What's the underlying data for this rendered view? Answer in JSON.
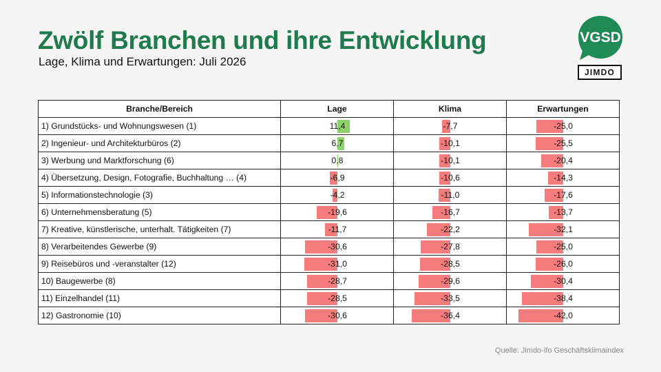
{
  "header": {
    "title": "Zwölf Branchen und ihre Entwicklung",
    "subtitle": "Lage, Klima und Erwartungen: Juli 2026",
    "logo_vgsd": "VGSD",
    "logo_jimdo": "JIMDO"
  },
  "colors": {
    "title": "#1f7a4d",
    "positive": "#8fd16a",
    "negative": "#f47c7c",
    "logo": "#1f8a55"
  },
  "source": "Quelle: Jimdo-ifo Geschäftsklimaindex",
  "chart_data": {
    "type": "table",
    "columns": [
      "Branche/Bereich",
      "Lage",
      "Klima",
      "Erwartungen"
    ],
    "rows": [
      {
        "branche": "1) Grundstücks- und Wohnungswesen (1)",
        "lage": "11,4",
        "klima": "-7,7",
        "erwartungen": "-25,0",
        "values": [
          11.4,
          -7.7,
          -25.0
        ]
      },
      {
        "branche": "2) Ingenieur- und Architekturbüros (2)",
        "lage": "6,7",
        "klima": "-10,1",
        "erwartungen": "-25,5",
        "values": [
          6.7,
          -10.1,
          -25.5
        ]
      },
      {
        "branche": "3) Werbung und Marktforschung (6)",
        "lage": "0,8",
        "klima": "-10,1",
        "erwartungen": "-20,4",
        "values": [
          0.8,
          -10.1,
          -20.4
        ]
      },
      {
        "branche": "4) Übersetzung, Design, Fotografie, Buchhaltung … (4)",
        "lage": "-6,9",
        "klima": "-10,6",
        "erwartungen": "-14,3",
        "values": [
          -6.9,
          -10.6,
          -14.3
        ]
      },
      {
        "branche": "5) Informationstechnologie (3)",
        "lage": "-4,2",
        "klima": "-11,0",
        "erwartungen": "-17,6",
        "values": [
          -4.2,
          -11.0,
          -17.6
        ]
      },
      {
        "branche": "6) Unternehmensberatung (5)",
        "lage": "-19,6",
        "klima": "-16,7",
        "erwartungen": "-13,7",
        "values": [
          -19.6,
          -16.7,
          -13.7
        ]
      },
      {
        "branche": "7) Kreative, künstlerische, unterhalt. Tätigkeiten (7)",
        "lage": "-11,7",
        "klima": "-22,2",
        "erwartungen": "-32,1",
        "values": [
          -11.7,
          -22.2,
          -32.1
        ]
      },
      {
        "branche": "8) Verarbeitendes Gewerbe (9)",
        "lage": "-30,6",
        "klima": "-27,8",
        "erwartungen": "-25,0",
        "values": [
          -30.6,
          -27.8,
          -25.0
        ]
      },
      {
        "branche": "9) Reisebüros und -veranstalter (12)",
        "lage": "-31,0",
        "klima": "-28,5",
        "erwartungen": "-26,0",
        "values": [
          -31.0,
          -28.5,
          -26.0
        ]
      },
      {
        "branche": "10) Baugewerbe (8)",
        "lage": "-28,7",
        "klima": "-29,6",
        "erwartungen": "-30,4",
        "values": [
          -28.7,
          -29.6,
          -30.4
        ]
      },
      {
        "branche": "11) Einzelhandel (11)",
        "lage": "-28,5",
        "klima": "-33,5",
        "erwartungen": "-38,4",
        "values": [
          -28.5,
          -33.5,
          -38.4
        ]
      },
      {
        "branche": "12) Gastronomie (10)",
        "lage": "-30,6",
        "klima": "-36,4",
        "erwartungen": "-42,0",
        "values": [
          -30.6,
          -36.4,
          -42.0
        ]
      }
    ]
  }
}
